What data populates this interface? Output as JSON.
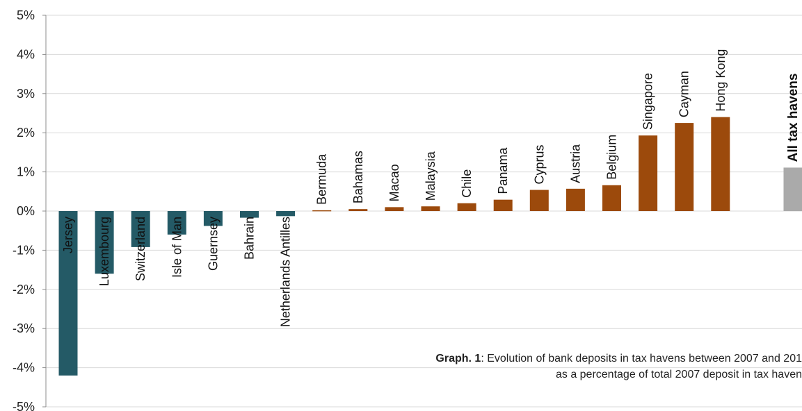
{
  "chart_data": {
    "type": "bar",
    "ylim": [
      -5,
      5
    ],
    "ytick_labels": [
      "5%",
      "4%",
      "3%",
      "2%",
      "1%",
      "0%",
      "-1%",
      "-2%",
      "-3%",
      "-4%",
      "-5%"
    ],
    "ytick_values": [
      5,
      4,
      3,
      2,
      1,
      0,
      -1,
      -2,
      -3,
      -4,
      -5
    ],
    "grid": true,
    "categories": [
      "Jersey",
      "Luxembourg",
      "Switzerland",
      "Isle of Man",
      "Guernsey",
      "Bahrain",
      "Netherlands Antilles",
      "Bermuda",
      "Bahamas",
      "Macao",
      "Malaysia",
      "Chile",
      "Panama",
      "Cyprus",
      "Austria",
      "Belgium",
      "Singapore",
      "Cayman",
      "Hong Kong",
      "All tax havens"
    ],
    "values": [
      -4.2,
      -1.6,
      -0.92,
      -0.6,
      -0.38,
      -0.17,
      -0.13,
      0.02,
      0.05,
      0.1,
      0.12,
      0.2,
      0.29,
      0.54,
      0.57,
      0.66,
      1.93,
      2.25,
      2.4,
      1.11
    ],
    "slots": [
      0,
      1,
      2,
      3,
      4,
      5,
      6,
      7,
      8,
      9,
      10,
      11,
      12,
      13,
      14,
      15,
      16,
      17,
      18,
      20
    ],
    "colors": {
      "negative": "#245a66",
      "positive": "#9c4a0c",
      "total": "#aaaaaa",
      "grid": "#d9d9d9",
      "axis": "#8c8c8c"
    },
    "emphasized": [
      "All tax havens"
    ]
  },
  "caption": {
    "bold": "Graph. 1",
    "line1_rest": ": Evolution of bank deposits in tax havens between 2007 and 201",
    "line2": "as a percentage of total 2007 deposit in tax haven"
  }
}
